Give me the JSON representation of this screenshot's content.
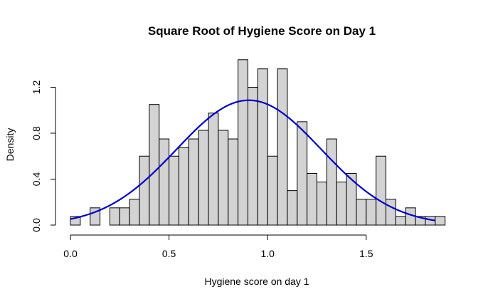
{
  "chart_data": {
    "type": "bar",
    "title": "Square Root of Hygiene Score on Day 1",
    "xlabel": "Hygiene score on day 1",
    "ylabel": "Density",
    "xlim": [
      0,
      1.9
    ],
    "ylim": [
      0,
      1.45
    ],
    "xticks": [
      "0.0",
      "0.5",
      "1.0",
      "1.5"
    ],
    "yticks": [
      "0.0",
      "0.4",
      "0.8",
      "1.2"
    ],
    "bin_width": 0.05,
    "bins_start": 0.0,
    "densities": [
      0.075,
      0,
      0.15,
      0,
      0.15,
      0.15,
      0.225,
      0.6,
      1.05,
      0.75,
      0.6,
      0.675,
      0.75,
      0.825,
      0.975,
      0.825,
      0.75,
      1.44,
      1.2,
      1.36,
      0.6,
      1.36,
      0.3,
      0.9,
      0.45,
      0.375,
      0.75,
      0.375,
      0.45,
      0.225,
      0.225,
      0.6,
      0.225,
      0.075,
      0.15,
      0.075,
      0.075,
      0.075
    ],
    "curve": {
      "mean": 0.905,
      "sd": 0.367,
      "x_range": [
        0.0,
        1.85
      ],
      "color": "#0000cd"
    },
    "bar_color": "#d3d3d3",
    "grid": false
  }
}
